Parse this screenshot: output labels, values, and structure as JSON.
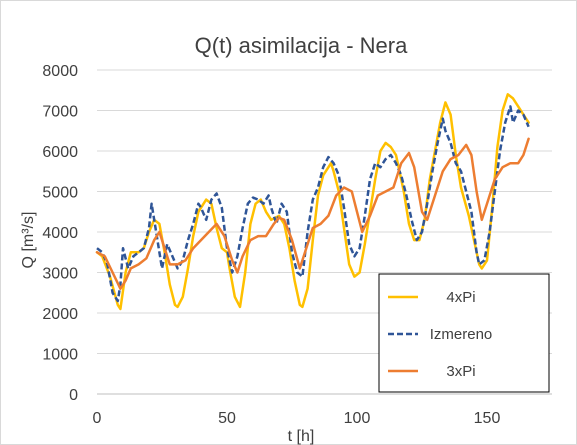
{
  "chart_data": {
    "type": "line",
    "title": "Q(t)  asimilacija - Nera",
    "xlabel": "t [h]",
    "ylabel": "Q [m³/s]",
    "xlim": [
      0,
      175
    ],
    "ylim": [
      0,
      8000
    ],
    "x_ticks": [
      0,
      50,
      100,
      150
    ],
    "y_ticks": [
      0,
      1000,
      2000,
      3000,
      4000,
      5000,
      6000,
      7000,
      8000
    ],
    "grid": "horizontal",
    "legend_position": "bottom-right",
    "series": [
      {
        "name": "4xPi",
        "color": "#ffc000",
        "style": "solid",
        "points": [
          [
            0,
            3500
          ],
          [
            2,
            3400
          ],
          [
            5,
            2900
          ],
          [
            8,
            2200
          ],
          [
            9,
            2100
          ],
          [
            11,
            3000
          ],
          [
            13,
            3500
          ],
          [
            16,
            3500
          ],
          [
            18,
            3600
          ],
          [
            20,
            4000
          ],
          [
            22,
            4300
          ],
          [
            24,
            4200
          ],
          [
            26,
            3500
          ],
          [
            28,
            2700
          ],
          [
            30,
            2200
          ],
          [
            31,
            2150
          ],
          [
            33,
            2400
          ],
          [
            35,
            3100
          ],
          [
            37,
            3900
          ],
          [
            39,
            4500
          ],
          [
            42,
            4800
          ],
          [
            44,
            4700
          ],
          [
            46,
            4100
          ],
          [
            48,
            3600
          ],
          [
            50,
            3500
          ],
          [
            51,
            3100
          ],
          [
            53,
            2400
          ],
          [
            55,
            2150
          ],
          [
            57,
            3000
          ],
          [
            59,
            4200
          ],
          [
            61,
            4700
          ],
          [
            63,
            4800
          ],
          [
            65,
            4500
          ],
          [
            67,
            4300
          ],
          [
            70,
            4400
          ],
          [
            72,
            4200
          ],
          [
            74,
            3600
          ],
          [
            76,
            2800
          ],
          [
            78,
            2200
          ],
          [
            79,
            2150
          ],
          [
            81,
            2600
          ],
          [
            83,
            3800
          ],
          [
            85,
            4900
          ],
          [
            87,
            5400
          ],
          [
            90,
            5700
          ],
          [
            91,
            5500
          ],
          [
            93,
            5000
          ],
          [
            95,
            4100
          ],
          [
            97,
            3200
          ],
          [
            99,
            2900
          ],
          [
            101,
            3000
          ],
          [
            103,
            3700
          ],
          [
            105,
            4500
          ],
          [
            107,
            5300
          ],
          [
            109,
            6000
          ],
          [
            111,
            6200
          ],
          [
            113,
            6100
          ],
          [
            115,
            5900
          ],
          [
            118,
            5000
          ],
          [
            120,
            4200
          ],
          [
            122,
            3800
          ],
          [
            124,
            3800
          ],
          [
            126,
            4300
          ],
          [
            128,
            5300
          ],
          [
            130,
            6000
          ],
          [
            132,
            6700
          ],
          [
            134,
            7200
          ],
          [
            136,
            6900
          ],
          [
            138,
            5900
          ],
          [
            140,
            5100
          ],
          [
            143,
            4400
          ],
          [
            145,
            3800
          ],
          [
            147,
            3200
          ],
          [
            148,
            3100
          ],
          [
            150,
            3300
          ],
          [
            152,
            4600
          ],
          [
            154,
            6100
          ],
          [
            156,
            7000
          ],
          [
            158,
            7400
          ],
          [
            160,
            7300
          ],
          [
            162,
            7100
          ],
          [
            164,
            6900
          ],
          [
            166,
            6700
          ]
        ]
      },
      {
        "name": "Izmereno",
        "color": "#2f5597",
        "style": "dashed",
        "points": [
          [
            0,
            3600
          ],
          [
            2,
            3500
          ],
          [
            4,
            3200
          ],
          [
            6,
            2500
          ],
          [
            8,
            2300
          ],
          [
            9,
            2700
          ],
          [
            10,
            3600
          ],
          [
            12,
            3100
          ],
          [
            14,
            3400
          ],
          [
            16,
            3500
          ],
          [
            18,
            3600
          ],
          [
            20,
            4100
          ],
          [
            21,
            4700
          ],
          [
            22,
            4300
          ],
          [
            24,
            3500
          ],
          [
            25,
            3100
          ],
          [
            27,
            3700
          ],
          [
            29,
            3400
          ],
          [
            31,
            3100
          ],
          [
            33,
            3300
          ],
          [
            35,
            3800
          ],
          [
            37,
            4200
          ],
          [
            39,
            4700
          ],
          [
            40,
            4600
          ],
          [
            42,
            4300
          ],
          [
            44,
            4800
          ],
          [
            46,
            4950
          ],
          [
            48,
            4600
          ],
          [
            50,
            3600
          ],
          [
            52,
            3000
          ],
          [
            54,
            3400
          ],
          [
            56,
            4100
          ],
          [
            58,
            4700
          ],
          [
            60,
            4850
          ],
          [
            62,
            4800
          ],
          [
            64,
            4700
          ],
          [
            66,
            4900
          ],
          [
            67,
            4600
          ],
          [
            69,
            4200
          ],
          [
            71,
            4700
          ],
          [
            73,
            4500
          ],
          [
            75,
            3500
          ],
          [
            77,
            3000
          ],
          [
            79,
            2900
          ],
          [
            81,
            4000
          ],
          [
            83,
            4800
          ],
          [
            85,
            5100
          ],
          [
            87,
            5600
          ],
          [
            89,
            5850
          ],
          [
            91,
            5700
          ],
          [
            93,
            5400
          ],
          [
            95,
            4600
          ],
          [
            97,
            3700
          ],
          [
            99,
            3400
          ],
          [
            101,
            3600
          ],
          [
            103,
            4400
          ],
          [
            105,
            5300
          ],
          [
            107,
            5700
          ],
          [
            109,
            5600
          ],
          [
            111,
            5800
          ],
          [
            113,
            5900
          ],
          [
            115,
            5700
          ],
          [
            117,
            5400
          ],
          [
            119,
            4900
          ],
          [
            121,
            4300
          ],
          [
            123,
            3800
          ],
          [
            125,
            4000
          ],
          [
            127,
            4700
          ],
          [
            129,
            5500
          ],
          [
            131,
            6200
          ],
          [
            133,
            6800
          ],
          [
            134,
            6500
          ],
          [
            136,
            6200
          ],
          [
            138,
            5700
          ],
          [
            140,
            5500
          ],
          [
            142,
            5000
          ],
          [
            144,
            4500
          ],
          [
            146,
            3500
          ],
          [
            147,
            3200
          ],
          [
            149,
            3300
          ],
          [
            151,
            4000
          ],
          [
            153,
            5000
          ],
          [
            155,
            6000
          ],
          [
            157,
            6700
          ],
          [
            159,
            7100
          ],
          [
            160,
            6700
          ],
          [
            162,
            7000
          ],
          [
            164,
            6900
          ],
          [
            166,
            6600
          ]
        ]
      },
      {
        "name": "3xPi",
        "color": "#ed7d31",
        "style": "solid",
        "points": [
          [
            0,
            3500
          ],
          [
            3,
            3400
          ],
          [
            6,
            3000
          ],
          [
            9,
            2600
          ],
          [
            11,
            2800
          ],
          [
            13,
            3100
          ],
          [
            16,
            3200
          ],
          [
            19,
            3350
          ],
          [
            22,
            3800
          ],
          [
            24,
            4000
          ],
          [
            26,
            3600
          ],
          [
            28,
            3200
          ],
          [
            31,
            3200
          ],
          [
            34,
            3300
          ],
          [
            37,
            3600
          ],
          [
            40,
            3800
          ],
          [
            43,
            4000
          ],
          [
            46,
            4200
          ],
          [
            49,
            3900
          ],
          [
            52,
            3300
          ],
          [
            54,
            3000
          ],
          [
            56,
            3400
          ],
          [
            59,
            3800
          ],
          [
            62,
            3900
          ],
          [
            65,
            3900
          ],
          [
            68,
            4200
          ],
          [
            70,
            4350
          ],
          [
            72,
            4300
          ],
          [
            75,
            3800
          ],
          [
            78,
            3100
          ],
          [
            80,
            3500
          ],
          [
            83,
            4100
          ],
          [
            86,
            4200
          ],
          [
            89,
            4400
          ],
          [
            92,
            4900
          ],
          [
            95,
            5100
          ],
          [
            98,
            5000
          ],
          [
            100,
            4500
          ],
          [
            102,
            4000
          ],
          [
            105,
            4400
          ],
          [
            108,
            4900
          ],
          [
            111,
            5000
          ],
          [
            114,
            5100
          ],
          [
            117,
            5700
          ],
          [
            120,
            5950
          ],
          [
            122,
            5600
          ],
          [
            125,
            4500
          ],
          [
            127,
            4300
          ],
          [
            130,
            4900
          ],
          [
            133,
            5500
          ],
          [
            136,
            5800
          ],
          [
            139,
            5900
          ],
          [
            142,
            6150
          ],
          [
            144,
            5900
          ],
          [
            146,
            5000
          ],
          [
            148,
            4300
          ],
          [
            150,
            4700
          ],
          [
            153,
            5300
          ],
          [
            156,
            5600
          ],
          [
            159,
            5700
          ],
          [
            162,
            5700
          ],
          [
            164,
            5900
          ],
          [
            166,
            6300
          ]
        ]
      }
    ]
  }
}
